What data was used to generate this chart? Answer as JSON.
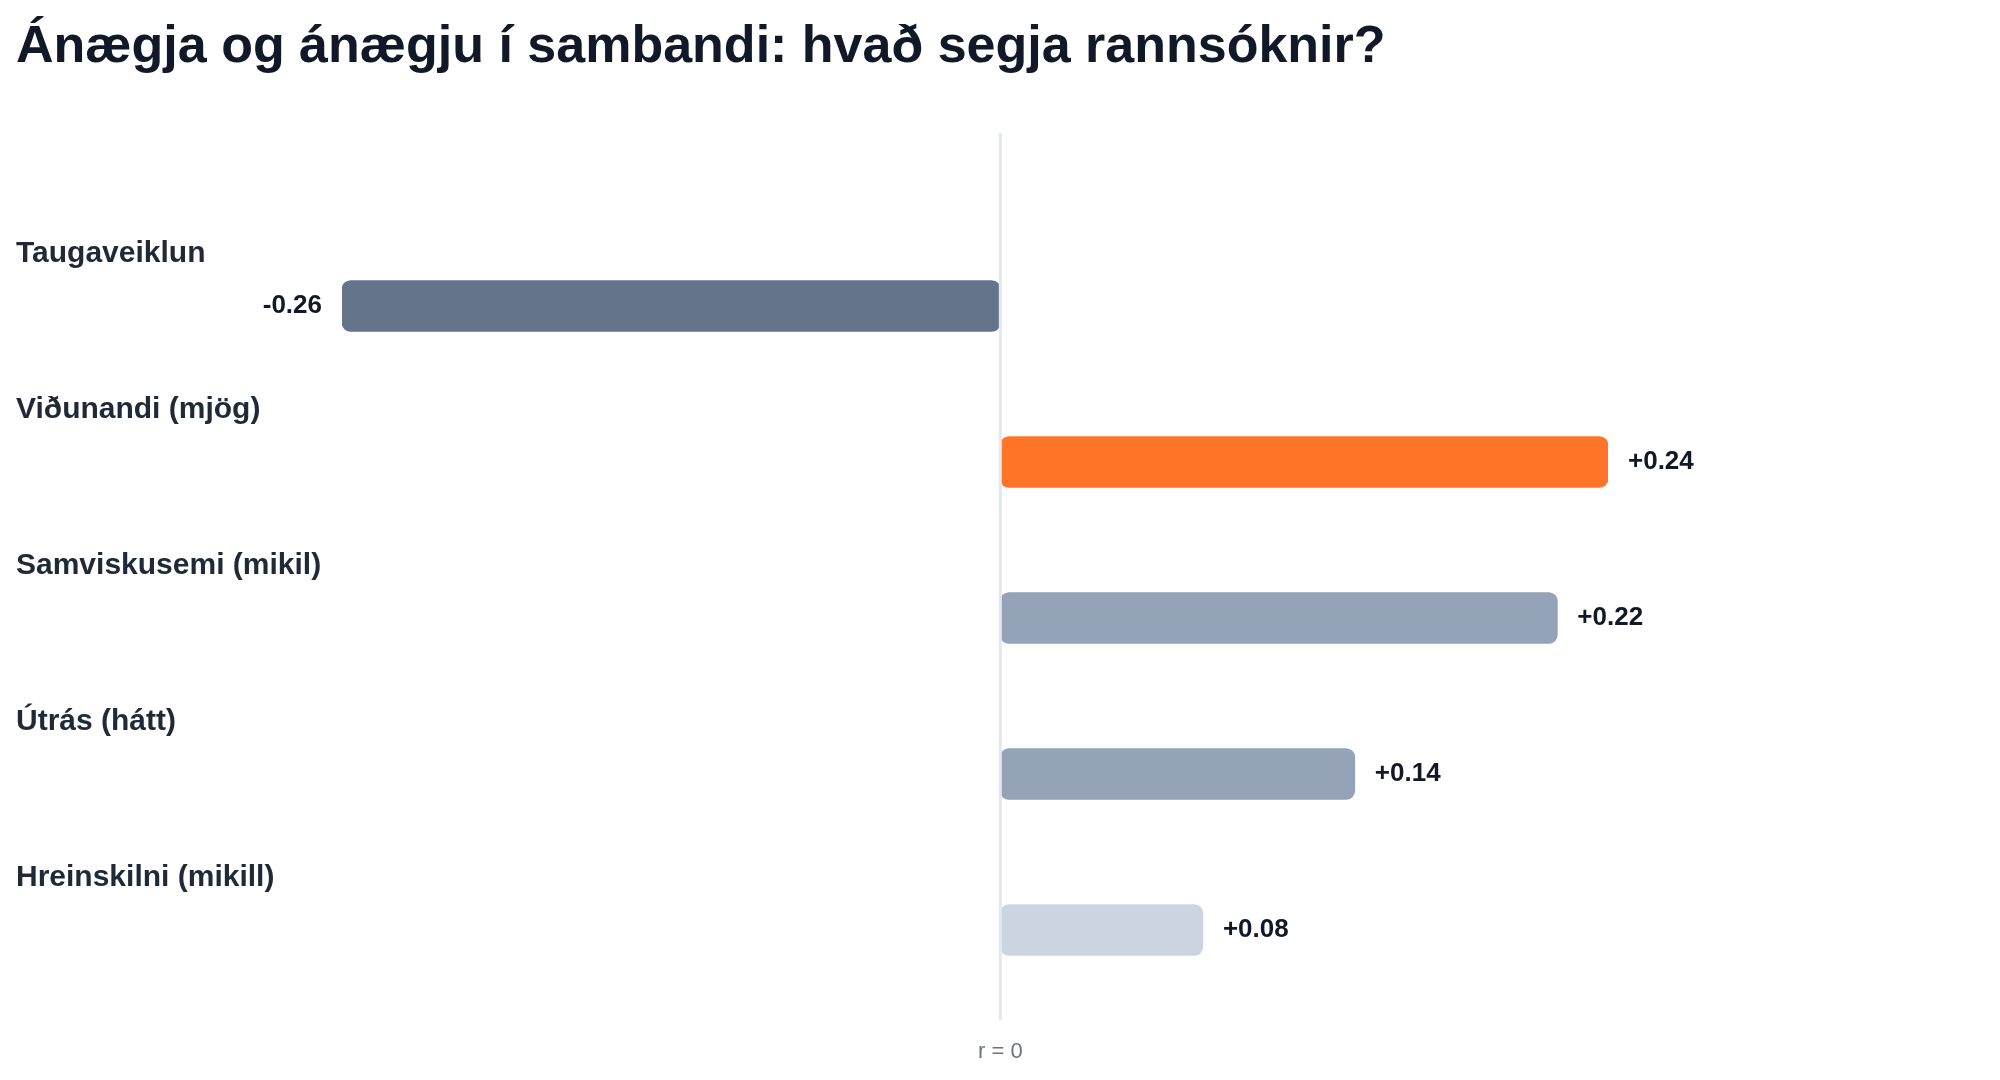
{
  "chart_data": {
    "type": "bar",
    "orientation": "horizontal",
    "title": "Ánægja og ánægju í sambandi: hvað segja rannsóknir?",
    "categories": [
      "Taugaveiklun",
      "Viðunandi (mjög)",
      "Samviskusemi (mikil)",
      "Útrás (hátt)",
      "Hreinskilni (mikill)"
    ],
    "values": [
      -0.26,
      0.24,
      0.22,
      0.14,
      0.08
    ],
    "colors": [
      "#64748b",
      "#ff7527",
      "#94a3b8",
      "#94a3b8",
      "#cbd5e1"
    ],
    "value_labels": [
      "-0.26",
      "+0.24",
      "+0.22",
      "+0.14",
      "+0.08"
    ],
    "ref_lines": [
      {
        "axis": "x",
        "value": 0,
        "label": "r = 0",
        "color": "#e2e8f0"
      }
    ],
    "legend": false
  }
}
